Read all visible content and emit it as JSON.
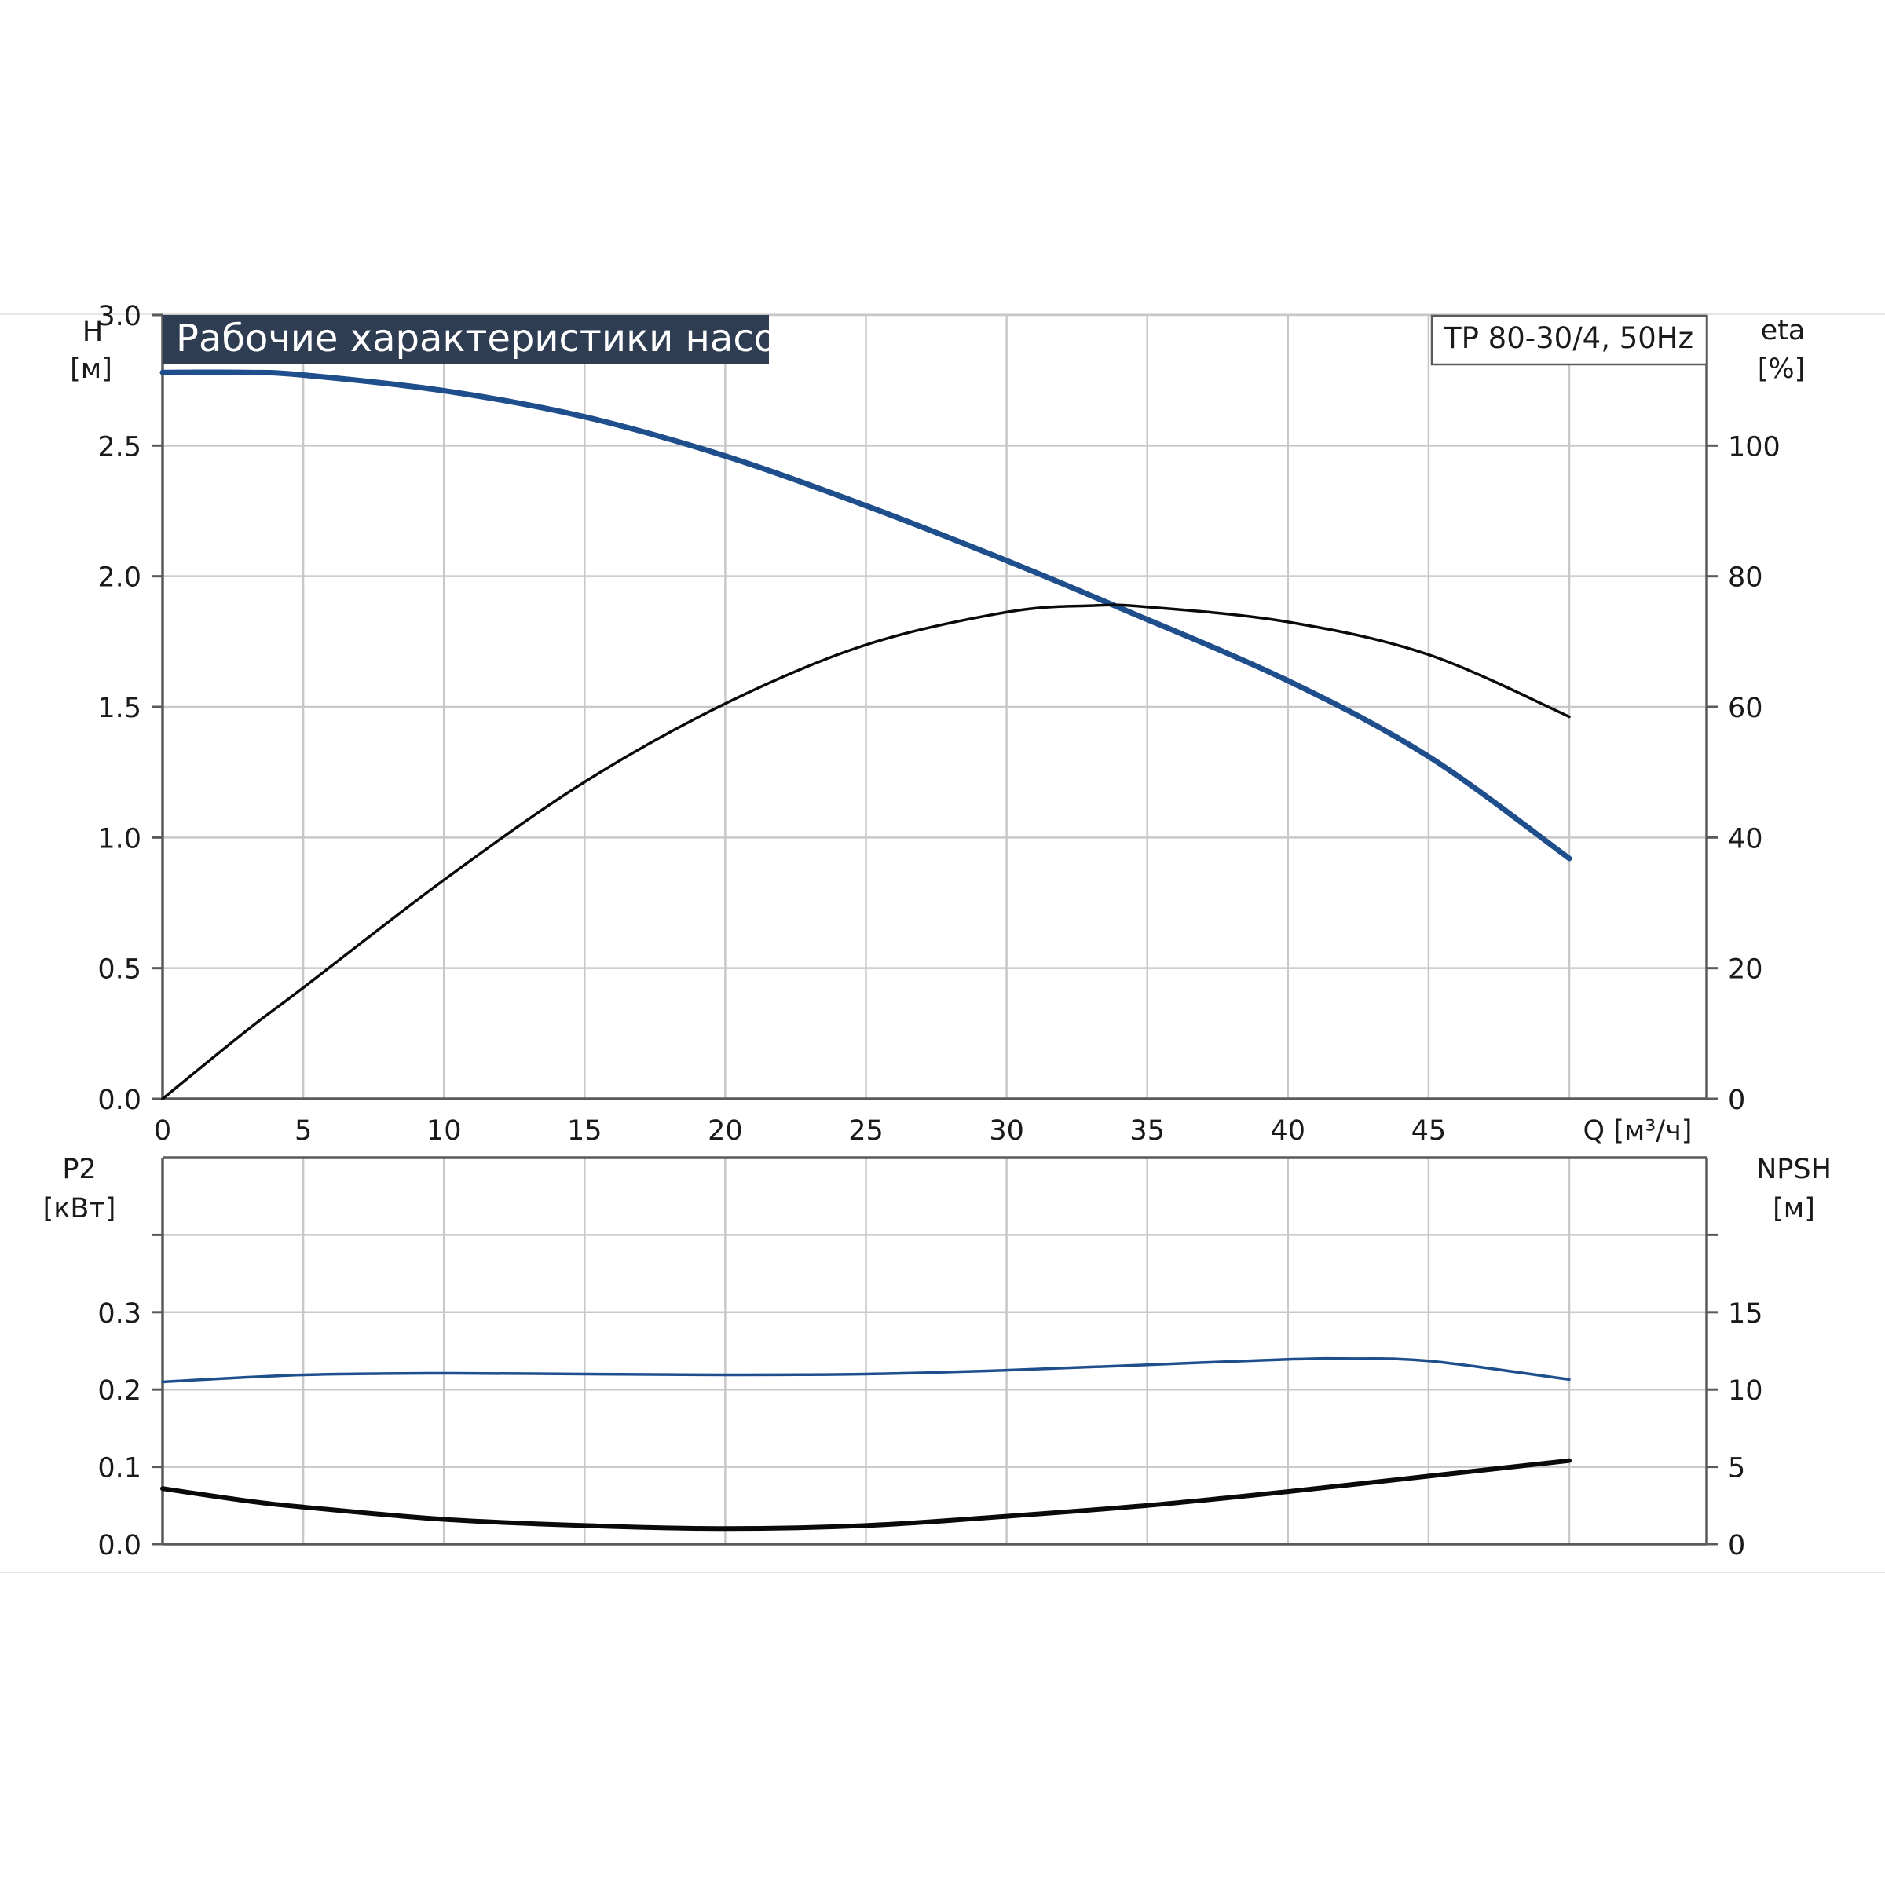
{
  "title": "Рабочие характеристики насоса",
  "model_label": "TP 80-30/4, 50Hz",
  "colors": {
    "head": "#1f4e8c",
    "black": "#0a0a0a",
    "title_bg": "#2e3d52"
  },
  "chart_data": [
    {
      "type": "line",
      "title": "Рабочие характеристики насоса",
      "x_axis": {
        "label": "Q [м³/ч]",
        "range": [
          0,
          55
        ],
        "ticks": [
          0,
          5,
          10,
          15,
          20,
          25,
          30,
          35,
          40,
          45
        ],
        "tick_labels": [
          "0",
          "5",
          "10",
          "15",
          "20",
          "25",
          "30",
          "35",
          "40",
          "45"
        ]
      },
      "y_left": {
        "label_top": "H",
        "label_unit": "[м]",
        "range": [
          0,
          3.0
        ],
        "ticks": [
          0,
          0.5,
          1.0,
          1.5,
          2.0,
          2.5,
          3.0
        ],
        "tick_labels": [
          "0.0",
          "0.5",
          "1.0",
          "1.5",
          "2.0",
          "2.5",
          "3.0"
        ]
      },
      "y_right": {
        "label_top": "eta",
        "label_unit": "[%]",
        "range": [
          0,
          120
        ],
        "ticks": [
          0,
          20,
          40,
          60,
          80,
          100
        ],
        "tick_labels": [
          "0",
          "20",
          "40",
          "60",
          "80",
          "100"
        ]
      },
      "grid": true,
      "series": [
        {
          "axis": "left",
          "color": "#1f4e8c",
          "x": [
            0,
            3,
            5,
            10,
            15,
            20,
            25,
            30,
            34,
            40,
            45,
            50
          ],
          "y": [
            2.78,
            2.78,
            2.77,
            2.71,
            2.61,
            2.46,
            2.27,
            2.06,
            1.88,
            1.6,
            1.31,
            0.92
          ]
        },
        {
          "axis": "right",
          "color": "#0a0a0a",
          "x": [
            0,
            3,
            5,
            10,
            15,
            20,
            25,
            30,
            33,
            35,
            40,
            45,
            50
          ],
          "y": [
            0,
            10.5,
            17,
            33.5,
            48.5,
            60.5,
            69.5,
            74.5,
            75.5,
            75.3,
            73,
            68,
            58.5
          ]
        }
      ]
    },
    {
      "type": "line",
      "x_axis": {
        "range": [
          0,
          55
        ],
        "ticks": [
          0,
          5,
          10,
          15,
          20,
          25,
          30,
          35,
          40,
          45
        ]
      },
      "y_left": {
        "label_top": "P2",
        "label_unit": "[кВт]",
        "range": [
          0,
          0.5
        ],
        "ticks": [
          0,
          0.1,
          0.2,
          0.3,
          0.4
        ],
        "tick_labels": [
          "0.0",
          "0.1",
          "0.2",
          "0.3",
          ""
        ]
      },
      "y_right": {
        "label_top": "NPSH",
        "label_unit": "[м]",
        "range": [
          0,
          25
        ],
        "ticks": [
          0,
          5,
          10,
          15,
          20
        ],
        "tick_labels": [
          "0",
          "5",
          "10",
          "15",
          ""
        ]
      },
      "grid": true,
      "series": [
        {
          "axis": "left",
          "color": "#1f4e8c",
          "x": [
            0,
            5,
            10,
            15,
            20,
            25,
            30,
            35,
            40,
            42,
            45,
            50
          ],
          "y": [
            0.21,
            0.219,
            0.221,
            0.22,
            0.219,
            0.22,
            0.225,
            0.232,
            0.239,
            0.24,
            0.237,
            0.213
          ]
        },
        {
          "axis": "right",
          "color": "#0a0a0a",
          "x": [
            0,
            3,
            5,
            10,
            15,
            20,
            25,
            30,
            35,
            40,
            45,
            50
          ],
          "y": [
            3.6,
            2.8,
            2.4,
            1.6,
            1.2,
            1.0,
            1.2,
            1.8,
            2.5,
            3.4,
            4.4,
            5.4
          ]
        }
      ]
    }
  ]
}
